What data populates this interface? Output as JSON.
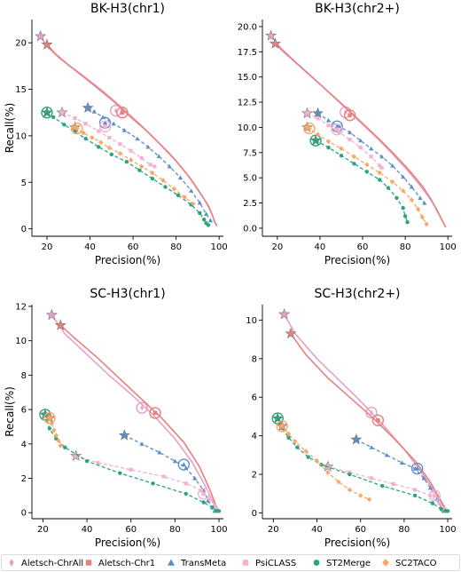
{
  "legend": [
    {
      "name": "Aletsch-ChrAll",
      "color": "#e79fc6",
      "marker": "thin-diamond"
    },
    {
      "name": "Aletsch-Chr1",
      "color": "#e8807c",
      "marker": "square"
    },
    {
      "name": "TransMeta",
      "color": "#5b8fc9",
      "marker": "triangle"
    },
    {
      "name": "PsiCLASS",
      "color": "#f3b1d3",
      "marker": "square"
    },
    {
      "name": "ST2Merge",
      "color": "#2aa57c",
      "marker": "circle"
    },
    {
      "name": "SC2TACO",
      "color": "#f6a868",
      "marker": "diamond"
    }
  ],
  "chart_data": [
    {
      "type": "line",
      "title": "BK-H3(chr1)",
      "xlabel": "Precision(%)",
      "ylabel": "Recall(%)",
      "xlim": [
        13,
        102
      ],
      "ylim": [
        -0.8,
        22.5
      ],
      "xticks": [
        20,
        40,
        60,
        80,
        100
      ],
      "yticks": [
        0,
        5,
        10,
        15,
        20
      ],
      "ytick_labels": [
        "0",
        "5",
        "10",
        "15",
        "20"
      ],
      "series": [
        {
          "name": "Aletsch-ChrAll",
          "style": "solid",
          "x": [
            17,
            20,
            26,
            36,
            46,
            55,
            63,
            70,
            77,
            83,
            88,
            92,
            95,
            97,
            98,
            99
          ],
          "y": [
            20.7,
            19.6,
            18.3,
            16.6,
            14.8,
            13.0,
            11.3,
            9.7,
            8.1,
            6.5,
            5.0,
            3.6,
            2.4,
            1.4,
            0.7,
            0.4
          ],
          "start": [
            17,
            20.7
          ],
          "circle": [
            52,
            12.7
          ]
        },
        {
          "name": "Aletsch-Chr1",
          "style": "solid",
          "x": [
            20,
            24,
            30,
            40,
            50,
            58,
            66,
            73,
            80,
            86,
            91,
            95,
            97,
            98,
            99
          ],
          "y": [
            19.8,
            18.8,
            17.6,
            15.8,
            13.9,
            12.2,
            10.6,
            9.0,
            7.3,
            5.6,
            3.9,
            2.5,
            1.4,
            0.7,
            0.3
          ],
          "start": [
            20,
            19.8
          ],
          "circle": [
            55,
            12.5
          ]
        },
        {
          "name": "TransMeta",
          "style": "dashed",
          "x": [
            39,
            42,
            46,
            51,
            56,
            62,
            67,
            72,
            77,
            82,
            87,
            91,
            94,
            96
          ],
          "y": [
            13.0,
            12.6,
            12.0,
            11.3,
            10.6,
            9.7,
            8.8,
            7.8,
            6.7,
            5.5,
            4.1,
            2.8,
            1.6,
            0.9
          ],
          "start": [
            39,
            13.0
          ],
          "circle": [
            47,
            11.4
          ]
        },
        {
          "name": "PsiCLASS",
          "style": "dashed",
          "x": [
            27,
            33,
            38,
            44,
            49,
            54,
            59,
            64,
            68,
            70
          ],
          "y": [
            12.5,
            11.9,
            11.3,
            10.5,
            9.8,
            9.1,
            8.4,
            7.6,
            6.9,
            6.7
          ],
          "start": [
            27,
            12.5
          ],
          "circle": [
            47,
            11.0
          ]
        },
        {
          "name": "ST2Merge",
          "style": "dashed",
          "x": [
            20,
            23,
            28,
            33,
            38,
            44,
            50,
            57,
            63,
            69,
            75,
            81,
            87,
            91,
            93,
            94,
            95
          ],
          "y": [
            12.5,
            12.0,
            11.2,
            10.4,
            9.7,
            8.8,
            8.0,
            7.2,
            6.3,
            5.4,
            4.5,
            3.6,
            2.6,
            1.7,
            1.0,
            0.6,
            0.4
          ],
          "start": [
            20,
            12.5
          ],
          "circle": [
            20,
            12.5
          ]
        },
        {
          "name": "SC2TACO",
          "style": "dashed",
          "x": [
            33,
            37,
            41,
            45,
            49,
            54,
            59,
            64,
            69,
            74,
            79,
            84,
            88
          ],
          "y": [
            10.9,
            10.3,
            9.8,
            9.3,
            8.7,
            8.1,
            7.4,
            6.7,
            6.0,
            5.2,
            4.3,
            3.4,
            2.7
          ],
          "start": [
            33,
            10.9
          ],
          "circle": [
            34,
            10.8
          ]
        }
      ]
    },
    {
      "type": "line",
      "title": "BK-H3(chr2+)",
      "xlabel": "Precision(%)",
      "ylabel": "",
      "xlim": [
        13,
        102
      ],
      "ylim": [
        -0.8,
        20.7
      ],
      "xticks": [
        20,
        40,
        60,
        80,
        100
      ],
      "yticks": [
        0,
        2.5,
        5,
        7.5,
        10,
        12.5,
        15,
        17.5,
        20
      ],
      "ytick_labels": [
        "0.0",
        "2.5",
        "5.0",
        "7.5",
        "10.0",
        "12.5",
        "15.0",
        "17.5",
        "20.0"
      ],
      "series": [
        {
          "name": "Aletsch-ChrAll",
          "style": "solid",
          "x": [
            17,
            22,
            30,
            40,
            50,
            58,
            66,
            73,
            80,
            86,
            91,
            95,
            97,
            99
          ],
          "y": [
            19.1,
            17.8,
            16.2,
            14.3,
            12.3,
            10.7,
            9.1,
            7.6,
            6.0,
            4.5,
            3.1,
            1.8,
            0.9,
            0.1
          ],
          "start": [
            17,
            19.1
          ],
          "circle": [
            52,
            11.5
          ]
        },
        {
          "name": "Aletsch-Chr1",
          "style": "solid",
          "x": [
            19,
            24,
            32,
            42,
            52,
            60,
            68,
            75,
            82,
            88,
            92,
            95,
            97,
            99
          ],
          "y": [
            18.3,
            17.3,
            15.8,
            13.9,
            12.0,
            10.4,
            8.8,
            7.3,
            5.7,
            4.2,
            2.9,
            1.7,
            0.9,
            0.1
          ],
          "start": [
            19,
            18.3
          ],
          "circle": [
            54,
            11.2
          ]
        },
        {
          "name": "TransMeta",
          "style": "dashed",
          "x": [
            39,
            44,
            49,
            54,
            59,
            64,
            69,
            74,
            79,
            83,
            87,
            89
          ],
          "y": [
            11.4,
            10.7,
            10.1,
            9.5,
            8.7,
            7.9,
            7.1,
            6.2,
            5.1,
            4.1,
            3.0,
            2.5
          ],
          "start": [
            39,
            11.4
          ],
          "circle": [
            48,
            10.1
          ]
        },
        {
          "name": "PsiCLASS",
          "style": "dashed",
          "x": [
            34,
            39,
            44,
            49,
            54,
            59,
            64,
            68,
            69
          ],
          "y": [
            11.4,
            10.9,
            10.2,
            9.5,
            8.8,
            8.0,
            7.1,
            6.2,
            6.0
          ],
          "start": [
            34,
            11.4
          ],
          "circle": [
            48,
            9.8
          ]
        },
        {
          "name": "ST2Merge",
          "style": "dashed",
          "x": [
            38,
            44,
            50,
            56,
            62,
            68,
            72,
            76,
            79,
            80,
            81
          ],
          "y": [
            8.7,
            8.0,
            7.2,
            6.4,
            5.6,
            4.8,
            4.0,
            3.0,
            2.0,
            1.2,
            0.6
          ],
          "start": [
            38,
            8.7
          ],
          "circle": [
            38,
            8.7
          ]
        },
        {
          "name": "SC2TACO",
          "style": "dashed",
          "x": [
            34,
            39,
            44,
            50,
            56,
            62,
            68,
            74,
            79,
            83,
            86,
            88,
            90
          ],
          "y": [
            10.0,
            9.3,
            8.6,
            7.9,
            7.1,
            6.3,
            5.5,
            4.6,
            3.7,
            2.8,
            1.9,
            1.1,
            0.4
          ],
          "start": [
            34,
            10.0
          ],
          "circle": [
            35,
            9.9
          ]
        }
      ]
    },
    {
      "type": "line",
      "title": "SC-H3(chr1)",
      "xlabel": "Precision(%)",
      "ylabel": "Recall(%)",
      "xlim": [
        15,
        102
      ],
      "ylim": [
        -0.35,
        12.1
      ],
      "xticks": [
        20,
        40,
        60,
        80,
        100
      ],
      "yticks": [
        0,
        2,
        4,
        6,
        8,
        10,
        12
      ],
      "ytick_labels": [
        "0",
        "2",
        "4",
        "6",
        "8",
        "10",
        "12"
      ],
      "series": [
        {
          "name": "Aletsch-ChrAll",
          "style": "solid",
          "x": [
            24,
            30,
            40,
            50,
            60,
            70,
            80,
            88,
            94,
            97,
            99,
            100
          ],
          "y": [
            11.5,
            10.4,
            9.2,
            8.0,
            6.9,
            5.7,
            4.3,
            2.9,
            1.5,
            0.7,
            0.3,
            0.1
          ],
          "start": [
            24,
            11.5
          ],
          "circle": [
            65,
            6.1
          ]
        },
        {
          "name": "Aletsch-Chr1",
          "style": "solid",
          "x": [
            28,
            34,
            44,
            54,
            64,
            74,
            84,
            91,
            96,
            98,
            99,
            100
          ],
          "y": [
            10.9,
            10.2,
            9.1,
            7.9,
            6.7,
            5.5,
            4.1,
            2.7,
            1.3,
            0.6,
            0.3,
            0.1
          ],
          "start": [
            28,
            10.9
          ],
          "circle": [
            71,
            5.8
          ]
        },
        {
          "name": "TransMeta",
          "style": "dashed",
          "x": [
            57,
            65,
            73,
            80,
            85,
            89,
            93,
            95,
            97,
            98
          ],
          "y": [
            4.5,
            4.0,
            3.5,
            3.0,
            2.6,
            2.0,
            1.3,
            0.7,
            0.3,
            0.1
          ],
          "start": [
            57,
            4.5
          ],
          "circle": [
            84,
            2.8
          ]
        },
        {
          "name": "PsiCLASS",
          "style": "dashed",
          "x": [
            35,
            45,
            60,
            75,
            85,
            92,
            96,
            98,
            99
          ],
          "y": [
            3.3,
            2.9,
            2.5,
            2.1,
            1.7,
            1.3,
            0.8,
            0.4,
            0.2
          ],
          "start": [
            35,
            3.3
          ],
          "circle": [
            93,
            1.1
          ]
        },
        {
          "name": "ST2Merge",
          "style": "dashed",
          "x": [
            21,
            23,
            26,
            30,
            40,
            55,
            70,
            85,
            93,
            97,
            99,
            100
          ],
          "y": [
            5.7,
            4.9,
            4.3,
            3.8,
            3.0,
            2.3,
            1.7,
            1.1,
            0.6,
            0.3,
            0.1,
            0.1
          ],
          "start": [
            21,
            5.7
          ],
          "circle": [
            21,
            5.7
          ]
        },
        {
          "name": "SC2TACO",
          "style": "dashed",
          "x": [
            23,
            24,
            25,
            26,
            27,
            28
          ],
          "y": [
            5.5,
            5.2,
            4.8,
            4.5,
            4.2,
            3.9
          ],
          "start": [
            23,
            5.5
          ],
          "circle": [
            23,
            5.5
          ]
        }
      ]
    },
    {
      "type": "line",
      "title": "SC-H3(chr2+)",
      "xlabel": "Precision(%)",
      "ylabel": "",
      "xlim": [
        15,
        102
      ],
      "ylim": [
        -0.3,
        10.8
      ],
      "xticks": [
        20,
        40,
        60,
        80,
        100
      ],
      "yticks": [
        0,
        2,
        4,
        6,
        8,
        10
      ],
      "ytick_labels": [
        "0",
        "2",
        "4",
        "6",
        "8",
        "10"
      ],
      "series": [
        {
          "name": "Aletsch-ChrAll",
          "style": "solid",
          "x": [
            25,
            30,
            40,
            50,
            60,
            70,
            80,
            88,
            94,
            97,
            99,
            100
          ],
          "y": [
            10.3,
            9.3,
            8.0,
            6.9,
            5.8,
            4.6,
            3.3,
            2.1,
            1.1,
            0.5,
            0.2,
            0.1
          ],
          "start": [
            25,
            10.3
          ],
          "circle": [
            65,
            5.2
          ]
        },
        {
          "name": "Aletsch-Chr1",
          "style": "solid",
          "x": [
            28,
            35,
            45,
            55,
            65,
            75,
            85,
            92,
            96,
            98,
            99,
            100
          ],
          "y": [
            9.3,
            8.2,
            7.0,
            6.0,
            5.0,
            3.9,
            2.7,
            1.6,
            0.8,
            0.4,
            0.2,
            0.1
          ],
          "start": [
            28,
            9.3
          ],
          "circle": [
            68,
            4.8
          ]
        },
        {
          "name": "TransMeta",
          "style": "dashed",
          "x": [
            58,
            65,
            72,
            79,
            85,
            89,
            92,
            95,
            97,
            98
          ],
          "y": [
            3.8,
            3.4,
            3.0,
            2.6,
            2.3,
            1.8,
            1.3,
            0.7,
            0.3,
            0.1
          ],
          "start": [
            58,
            3.8
          ],
          "circle": [
            86,
            2.3
          ]
        },
        {
          "name": "PsiCLASS",
          "style": "dashed",
          "x": [
            45,
            55,
            65,
            75,
            85,
            92,
            96,
            98,
            99
          ],
          "y": [
            2.4,
            2.1,
            1.8,
            1.5,
            1.2,
            0.9,
            0.5,
            0.2,
            0.1
          ],
          "start": [
            45,
            2.4
          ],
          "circle": [
            94,
            0.9
          ]
        },
        {
          "name": "ST2Merge",
          "style": "dashed",
          "x": [
            22,
            24,
            27,
            31,
            36,
            42,
            55,
            70,
            85,
            93,
            97,
            99,
            100
          ],
          "y": [
            4.9,
            4.4,
            3.9,
            3.4,
            2.9,
            2.5,
            2.0,
            1.4,
            0.9,
            0.5,
            0.2,
            0.1,
            0.1
          ],
          "start": [
            22,
            4.9
          ],
          "circle": [
            22,
            4.9
          ]
        },
        {
          "name": "SC2TACO",
          "style": "dashed",
          "x": [
            24,
            27,
            30,
            35,
            40,
            45,
            50,
            55,
            60,
            64
          ],
          "y": [
            4.5,
            4.1,
            3.7,
            3.2,
            2.7,
            2.1,
            1.6,
            1.2,
            0.9,
            0.7
          ],
          "start": [
            24,
            4.5
          ],
          "circle": [
            24,
            4.5
          ]
        }
      ]
    }
  ]
}
